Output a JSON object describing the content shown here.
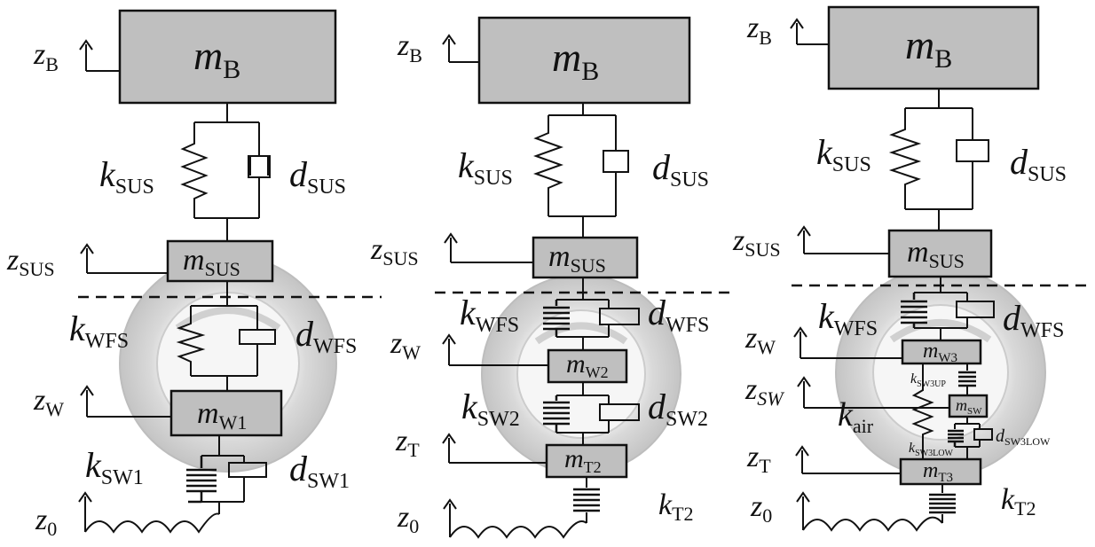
{
  "diagram_a": {
    "m_b": {
      "sym": "m",
      "sub": "B"
    },
    "k_sus": {
      "sym": "k",
      "sub": "SUS"
    },
    "d_sus": {
      "sym": "d",
      "sub": "SUS"
    },
    "m_sus": {
      "sym": "m",
      "sub": "SUS"
    },
    "k_wfs": {
      "sym": "k",
      "sub": "WFS"
    },
    "d_wfs": {
      "sym": "d",
      "sub": "WFS"
    },
    "m_w1": {
      "sym": "m",
      "sub": "W1"
    },
    "k_sw1": {
      "sym": "k",
      "sub": "SW1"
    },
    "d_sw1": {
      "sym": "d",
      "sub": "SW1"
    },
    "z_b": {
      "sym": "z",
      "sub": "B"
    },
    "z_sus": {
      "sym": "z",
      "sub": "SUS"
    },
    "z_w": {
      "sym": "z",
      "sub": "W"
    },
    "z_0": {
      "sym": "z",
      "sub": "0"
    }
  },
  "diagram_b": {
    "m_b": {
      "sym": "m",
      "sub": "B"
    },
    "k_sus": {
      "sym": "k",
      "sub": "SUS"
    },
    "d_sus": {
      "sym": "d",
      "sub": "SUS"
    },
    "m_sus": {
      "sym": "m",
      "sub": "SUS"
    },
    "k_wfs": {
      "sym": "k",
      "sub": "WFS"
    },
    "d_wfs": {
      "sym": "d",
      "sub": "WFS"
    },
    "m_w2": {
      "sym": "m",
      "sub": "W2"
    },
    "k_sw2": {
      "sym": "k",
      "sub": "SW2"
    },
    "d_sw2": {
      "sym": "d",
      "sub": "SW2"
    },
    "m_t2": {
      "sym": "m",
      "sub": "T2"
    },
    "k_t2": {
      "sym": "k",
      "sub": "T2"
    },
    "z_b": {
      "sym": "z",
      "sub": "B"
    },
    "z_sus": {
      "sym": "z",
      "sub": "SUS"
    },
    "z_w": {
      "sym": "z",
      "sub": "W"
    },
    "z_t": {
      "sym": "z",
      "sub": "T"
    },
    "z_0": {
      "sym": "z",
      "sub": "0"
    }
  },
  "diagram_c": {
    "m_b": {
      "sym": "m",
      "sub": "B"
    },
    "k_sus": {
      "sym": "k",
      "sub": "SUS"
    },
    "d_sus": {
      "sym": "d",
      "sub": "SUS"
    },
    "m_sus": {
      "sym": "m",
      "sub": "SUS"
    },
    "k_wfs": {
      "sym": "k",
      "sub": "WFS"
    },
    "d_wfs": {
      "sym": "d",
      "sub": "WFS"
    },
    "m_w3": {
      "sym": "m",
      "sub": "W3"
    },
    "k_sw3up": {
      "sym": "k",
      "sub": "SW3UP"
    },
    "m_sw": {
      "sym": "m",
      "sub": "SW"
    },
    "k_air": {
      "sym": "k",
      "sub": "air"
    },
    "k_sw3low": {
      "sym": "k",
      "sub": "SW3LOW"
    },
    "d_sw3low": {
      "sym": "d",
      "sub": "SW3LOW"
    },
    "m_t3": {
      "sym": "m",
      "sub": "T3"
    },
    "k_t2": {
      "sym": "k",
      "sub": "T2"
    },
    "z_b": {
      "sym": "z",
      "sub": "B"
    },
    "z_sus": {
      "sym": "z",
      "sub": "SUS"
    },
    "z_w": {
      "sym": "z",
      "sub": "W"
    },
    "z_sw": {
      "sym": "z",
      "sub": "SW"
    },
    "z_t": {
      "sym": "z",
      "sub": "T"
    },
    "z_0": {
      "sym": "z",
      "sub": "0"
    }
  },
  "colors": {
    "mass_fill": "#bfbfbf",
    "wheel_outer": "#cfcfcf",
    "wheel_inner": "#f0f0f0",
    "line": "#111111"
  }
}
